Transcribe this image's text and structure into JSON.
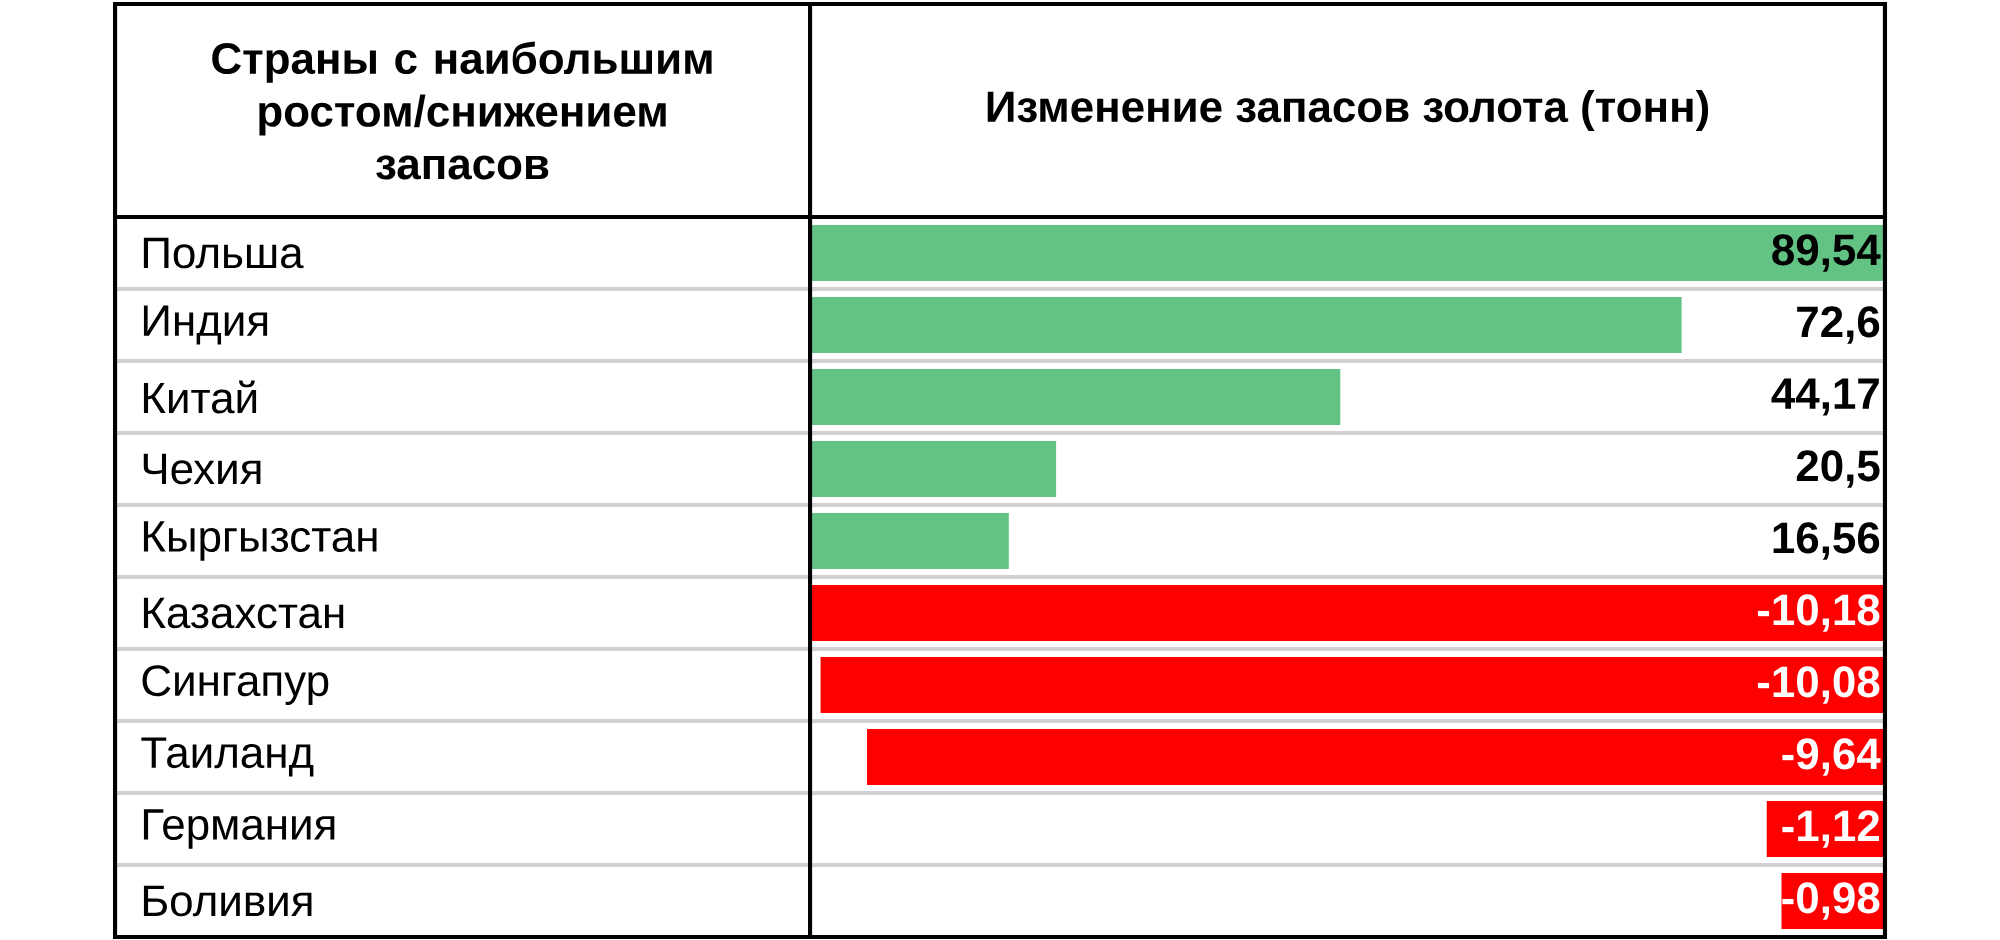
{
  "chart_data": [
    {
      "type": "bar",
      "orientation": "horizontal",
      "title": "Изменение запасов золота (тонн)",
      "ylabel": "Страны с наибольшим ростом/снижением запасов",
      "categories": [
        "Польша",
        "Индия",
        "Китай",
        "Чехия",
        "Кыргызстан"
      ],
      "values": [
        89.54,
        72.6,
        44.17,
        20.5,
        16.56
      ],
      "colors": [
        "#63c384",
        "#63c384",
        "#63c384",
        "#63c384",
        "#63c384"
      ],
      "value_labels": [
        "89,54",
        "72,6",
        "44,17",
        "20,5",
        "16,56"
      ],
      "xlim": [
        0,
        89.54
      ],
      "tick_labels": "y"
    },
    {
      "type": "bar",
      "orientation": "horizontal",
      "categories": [
        "Казахстан",
        "Сингапур",
        "Таиланд",
        "Германия",
        "Боливия"
      ],
      "values": [
        -10.18,
        -10.08,
        -9.64,
        -1.12,
        -0.98
      ],
      "colors": [
        "#ff0000",
        "#ff0000",
        "#ff0000",
        "#ff0000",
        "#ff0000"
      ],
      "value_labels": [
        "-10,18",
        "-10,08",
        "-9,64",
        "-1,12",
        "-0,98"
      ],
      "xlim": [
        -10.18,
        0
      ],
      "tick_labels": "y"
    }
  ]
}
